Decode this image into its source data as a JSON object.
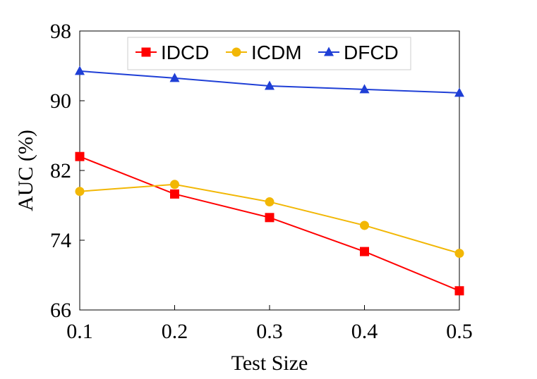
{
  "chart_data": {
    "type": "line",
    "title": "",
    "xlabel": "Test Size",
    "ylabel": "AUC (%)",
    "x": [
      0.1,
      0.2,
      0.3,
      0.4,
      0.5
    ],
    "x_tick_labels": [
      "0.1",
      "0.2",
      "0.3",
      "0.4",
      "0.5"
    ],
    "y_ticks": [
      66,
      74,
      82,
      90,
      98
    ],
    "y_tick_labels": [
      "66",
      "74",
      "82",
      "90",
      "98"
    ],
    "ylim": [
      66,
      98
    ],
    "grid": false,
    "legend_position": "top-center",
    "series": [
      {
        "name": "IDCD",
        "marker": "square",
        "color": "#ff0000",
        "values": [
          83.6,
          79.3,
          76.6,
          72.7,
          68.2
        ]
      },
      {
        "name": "ICDM",
        "marker": "circle",
        "color": "#f2b705",
        "values": [
          79.6,
          80.4,
          78.4,
          75.7,
          72.5
        ]
      },
      {
        "name": "DFCD",
        "marker": "triangle",
        "color": "#1f3fd6",
        "values": [
          93.4,
          92.6,
          91.7,
          91.3,
          90.9
        ]
      }
    ]
  }
}
